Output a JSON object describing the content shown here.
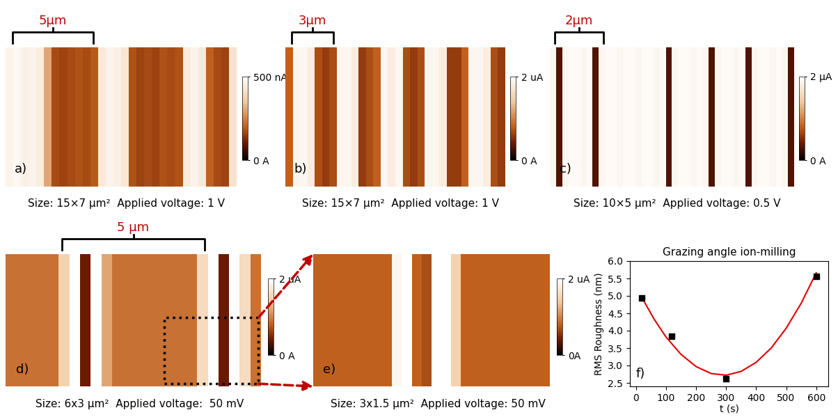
{
  "chart_data": [
    {
      "type": "heatmap",
      "annotation": "a)",
      "scale_bar": "5μm",
      "caption": "Size: 15×7 μm²  Applied voltage: 1 V",
      "tick_labels": false,
      "cells": [
        [
          470,
          480,
          460,
          470,
          450,
          300,
          170,
          160,
          170,
          180,
          170,
          190,
          440,
          470,
          460,
          430,
          180,
          160,
          170,
          160,
          180,
          170,
          180,
          450,
          470,
          440,
          200,
          170,
          160,
          420
        ]
      ],
      "colorbar_lim": [
        0,
        500
      ],
      "colorbar_ticks": [
        {
          "value": 0,
          "label": "0 A"
        },
        {
          "value": 500,
          "label": "500 nA"
        }
      ]
    },
    {
      "type": "heatmap",
      "annotation": "b)",
      "scale_bar": "3μm",
      "caption": "Size: 15×7 μm²  Applied voltage: 1 V",
      "tick_labels": false,
      "cells": [
        [
          0.8,
          1.9,
          1.9,
          1.8,
          0.7,
          0.6,
          0.7,
          1.9,
          1.9,
          1.8,
          0.6,
          0.7,
          0.8,
          1.9,
          1.8,
          1.9,
          0.7,
          0.6,
          0.7,
          1.9,
          1.9,
          1.8,
          0.6,
          0.6,
          0.8,
          1.9,
          1.9,
          1.8,
          0.7,
          0.6
        ]
      ],
      "colorbar_lim": [
        0,
        2
      ],
      "colorbar_ticks": [
        {
          "value": 0,
          "label": "0 A"
        },
        {
          "value": 2,
          "label": "2 uA"
        }
      ]
    },
    {
      "type": "heatmap",
      "annotation": "c)",
      "scale_bar": "2μm",
      "caption": "Size: 10×5 μm²  Applied voltage: 0.5 V",
      "tick_labels": false,
      "cells": [
        [
          1.9,
          0.3,
          1.9,
          1.95,
          1.95,
          1.9,
          1.95,
          0.3,
          1.9,
          1.95,
          1.95,
          1.9,
          1.95,
          1.95,
          1.9,
          1.95,
          1.95,
          1.9,
          1.95,
          0.3,
          1.9,
          1.95,
          1.95,
          1.9,
          1.95,
          1.9,
          0.3,
          1.9,
          1.95,
          1.95,
          1.9,
          1.95,
          0.3,
          1.9,
          1.95,
          1.95,
          1.9,
          1.95,
          1.9,
          0.3
        ]
      ],
      "colorbar_lim": [
        0,
        2
      ],
      "colorbar_ticks": [
        {
          "value": 0,
          "label": "0 A"
        },
        {
          "value": 2,
          "label": "2 μA"
        }
      ]
    },
    {
      "type": "heatmap",
      "annotation": "d)",
      "scale_bar": "5 μm",
      "caption": "Size: 6x3 μm²  Applied voltage:  50 mV",
      "tick_labels": false,
      "cells": [
        [
          0.9,
          0.9,
          0.9,
          0.9,
          0.9,
          1.5,
          2.0,
          0.4,
          2.0,
          1.2,
          0.9,
          0.9,
          0.9,
          0.9,
          0.9,
          0.9,
          0.9,
          0.9,
          1.6,
          2.0,
          0.4,
          2.0,
          1.6,
          0.9
        ]
      ],
      "colorbar_lim": [
        0,
        2
      ],
      "colorbar_ticks": [
        {
          "value": 0,
          "label": "0 A"
        },
        {
          "value": 2,
          "label": "2 uA"
        }
      ]
    },
    {
      "type": "heatmap",
      "annotation": "e)",
      "caption": "Size: 3x1.5 μm²  Applied voltage: 50 mV",
      "tick_labels": false,
      "cells": [
        [
          0.8,
          0.8,
          0.8,
          0.8,
          0.8,
          0.8,
          0.8,
          0.8,
          1.9,
          2.0,
          0.8,
          0.7,
          2.0,
          2.0,
          1.5,
          0.8,
          0.8,
          0.8,
          0.8,
          0.8,
          0.8,
          0.8,
          0.8,
          0.8
        ]
      ],
      "colorbar_lim": [
        0,
        2
      ],
      "colorbar_ticks": [
        {
          "value": 0,
          "label": "0A"
        },
        {
          "value": 2,
          "label": "2 uA"
        }
      ]
    },
    {
      "type": "line",
      "annotation": "f)",
      "title": "Grazing angle ion-milling",
      "x_label": "t (s)",
      "y_label": "RMS Roughness (nm)",
      "xlim": [
        -20,
        640
      ],
      "xticks": [
        0,
        100,
        200,
        300,
        400,
        500,
        600
      ],
      "ylim": [
        2.4,
        6.0
      ],
      "yticks": [
        2.5,
        3.0,
        3.5,
        4.0,
        4.5,
        5.0,
        5.5,
        6.0
      ],
      "series": [
        {
          "type": "scatter",
          "color": "#000000",
          "marker": "square",
          "x": [
            20,
            120,
            300,
            600
          ],
          "values": [
            4.95,
            3.85,
            2.63,
            5.57
          ]
        },
        {
          "type": "line",
          "color": "#e00000",
          "line_style": "solid",
          "x": [
            20,
            60,
            100,
            150,
            200,
            250,
            300,
            350,
            400,
            450,
            500,
            550,
            600
          ],
          "values": [
            4.95,
            4.34,
            3.82,
            3.32,
            2.97,
            2.77,
            2.72,
            2.83,
            3.09,
            3.5,
            4.07,
            4.79,
            5.66
          ]
        }
      ]
    }
  ]
}
